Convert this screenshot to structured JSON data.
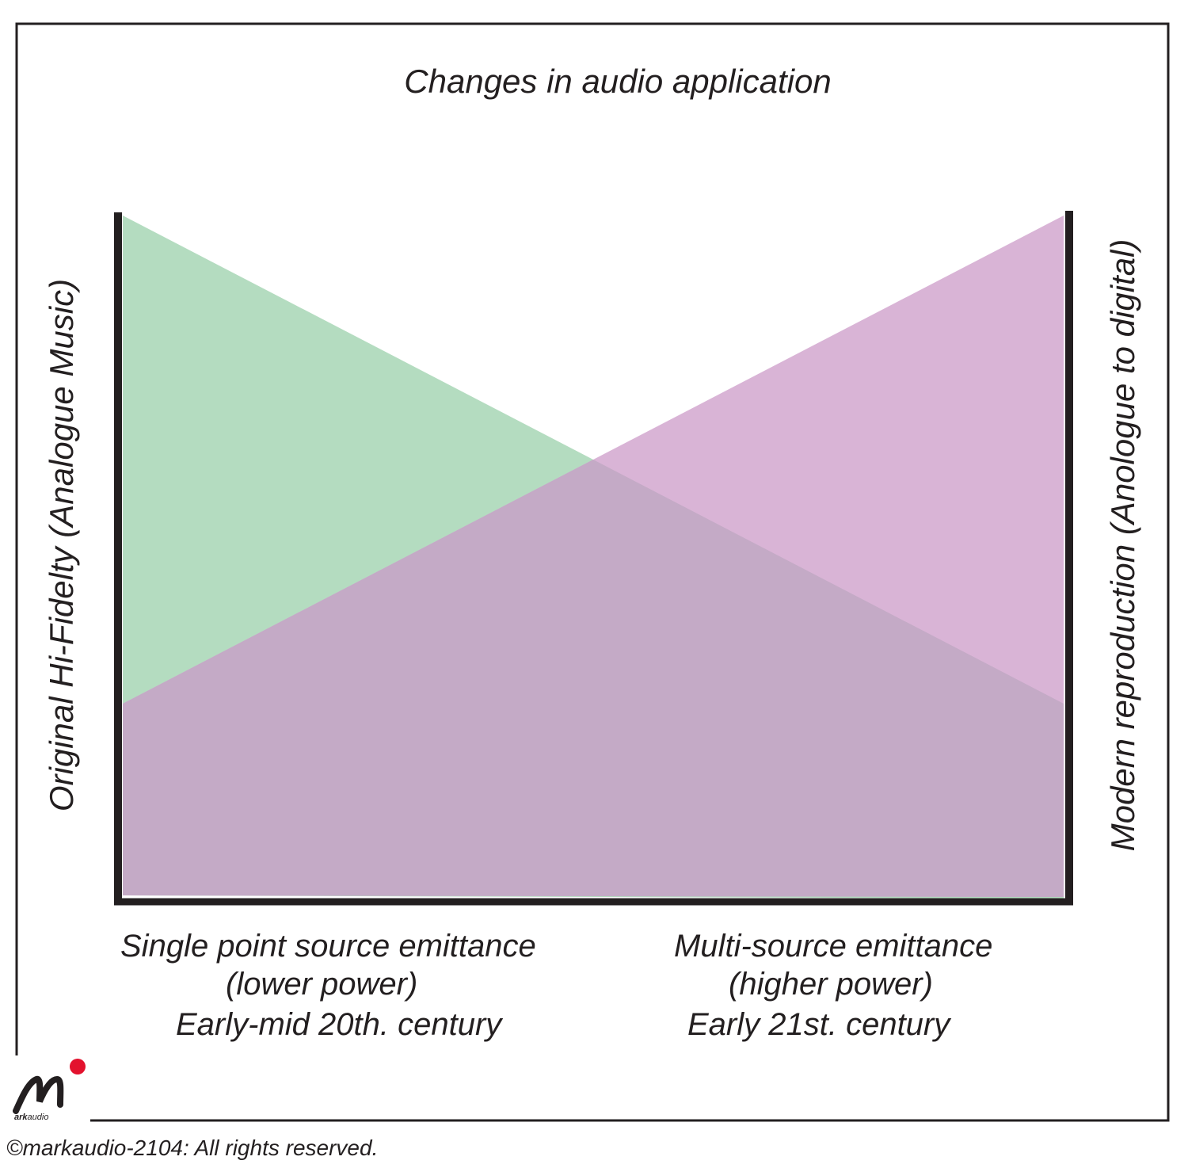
{
  "title": "Changes in audio application",
  "left_axis_label": "Original Hi-Fidelty (Analogue Music)",
  "right_axis_label": "Modern reproduction (Anologue to digital)",
  "bottom_left": {
    "line1": "Single point source  emittance",
    "line2": "(lower power)",
    "line3": "Early-mid 20th. century"
  },
  "bottom_right": {
    "line1": "Multi-source emittance",
    "line2": "(higher power)",
    "line3": "Early 21st. century"
  },
  "logo": {
    "letter": "M",
    "word_bold": "ark",
    "word_rest": "audio"
  },
  "copyright": "©markaudio-2104: All rights reserved.",
  "colors": {
    "green_area": "#b4dcc0",
    "pink_area": "#d9b4d6",
    "overlap": "#c4aac6",
    "axis": "#231f20",
    "logo_dot": "#e3122e"
  }
}
